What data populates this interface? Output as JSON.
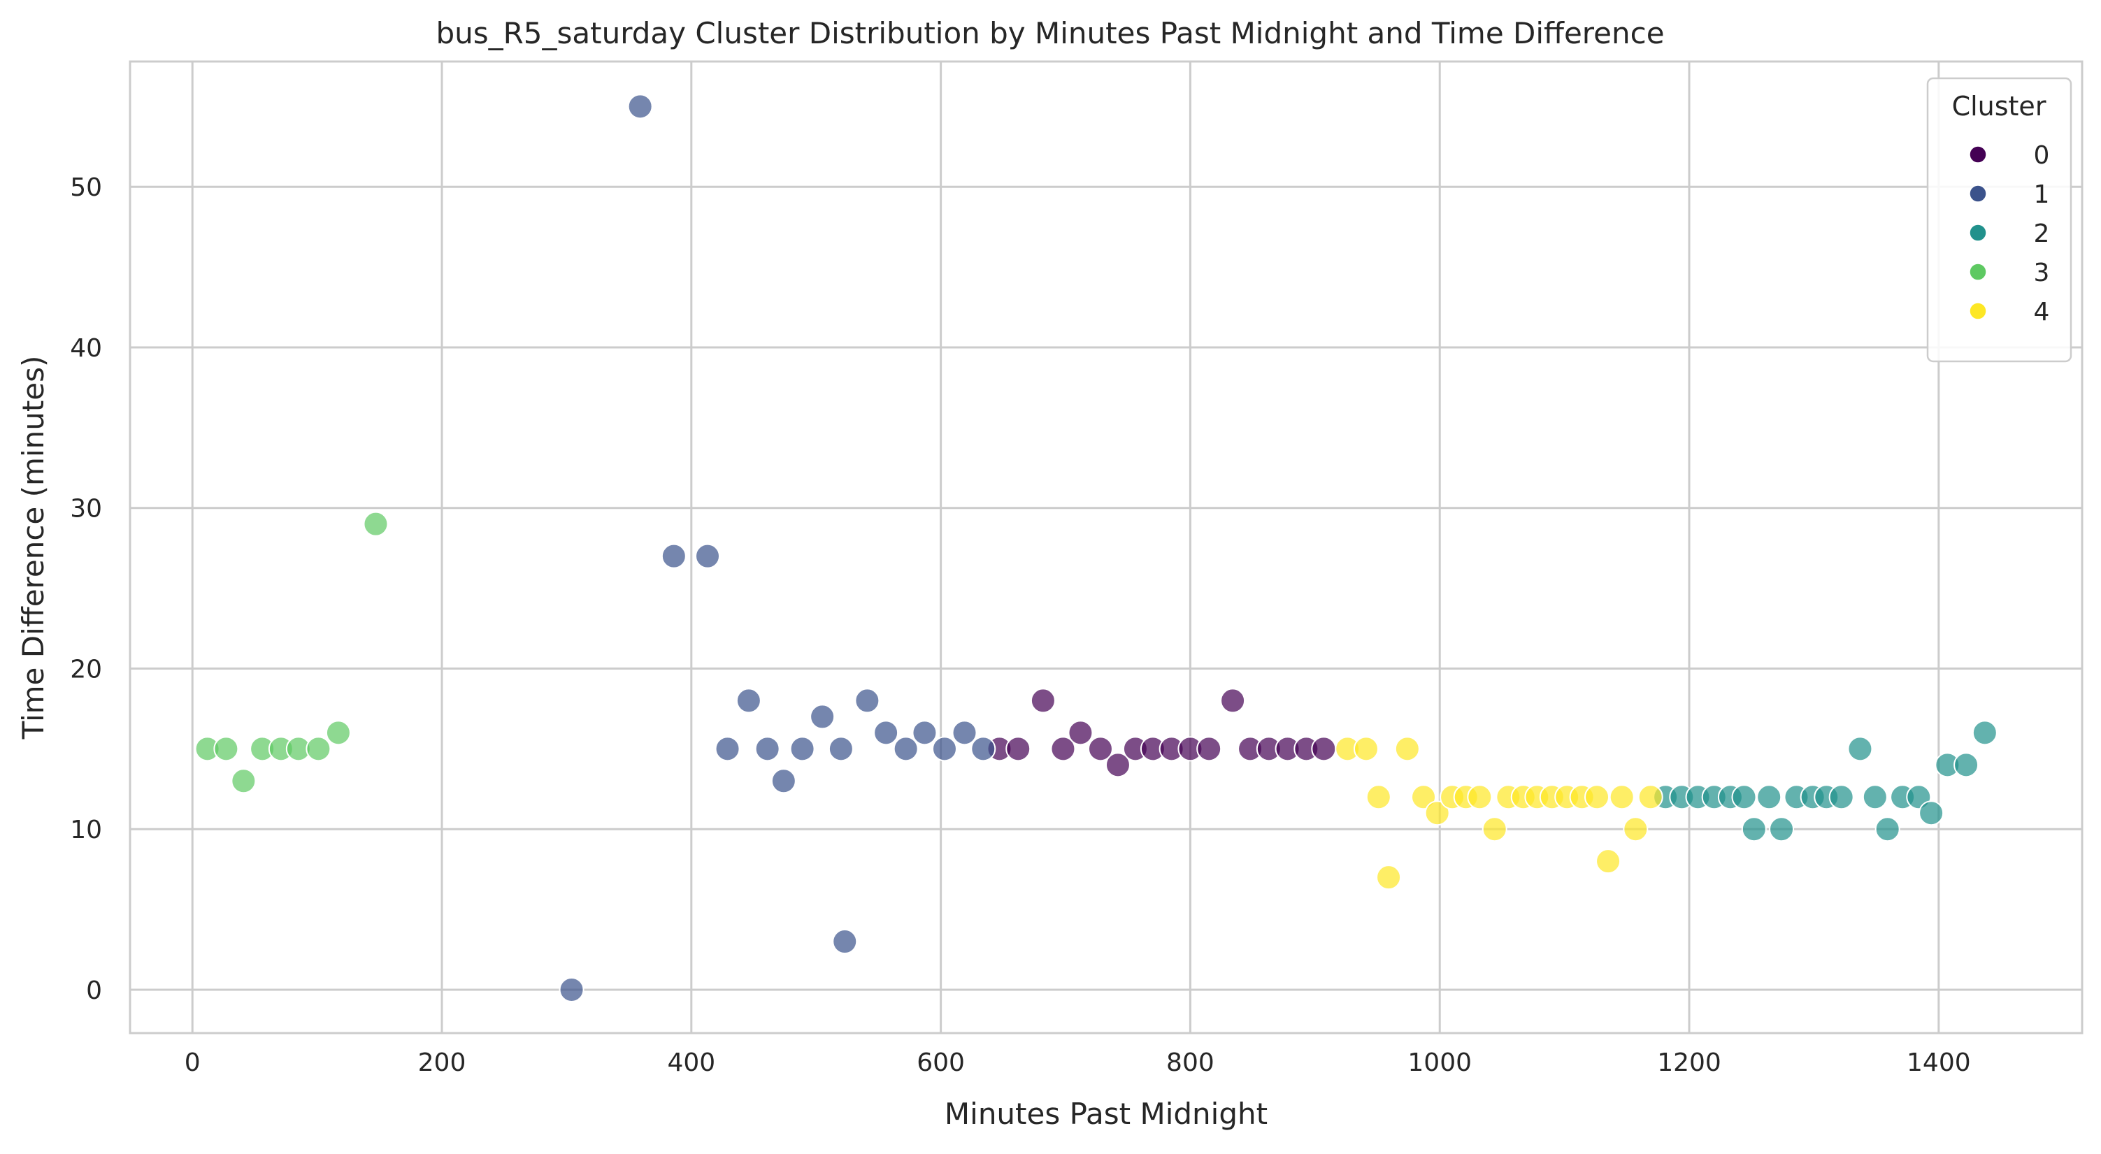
{
  "chart_data": {
    "type": "scatter",
    "title": "bus_R5_saturday Cluster Distribution by Minutes Past Midnight and Time Difference",
    "xlabel": "Minutes Past Midnight",
    "ylabel": "Time Difference (minutes)",
    "xlim": [
      -50,
      1515
    ],
    "ylim": [
      -2.7,
      57.8
    ],
    "xticks": [
      0,
      200,
      400,
      600,
      800,
      1000,
      1200,
      1400
    ],
    "yticks": [
      0,
      10,
      20,
      30,
      40,
      50
    ],
    "grid": true,
    "legend": {
      "title": "Cluster",
      "placement": "top-right"
    },
    "series": [
      {
        "name": "0",
        "color": "#440154",
        "points": [
          [
            647,
            15
          ],
          [
            662,
            15
          ],
          [
            682,
            18
          ],
          [
            698,
            15
          ],
          [
            712,
            16
          ],
          [
            728,
            15
          ],
          [
            742,
            14
          ],
          [
            756,
            15
          ],
          [
            770,
            15
          ],
          [
            785,
            15
          ],
          [
            800,
            15
          ],
          [
            815,
            15
          ],
          [
            834,
            18
          ],
          [
            848,
            15
          ],
          [
            863,
            15
          ],
          [
            878,
            15
          ],
          [
            893,
            15
          ],
          [
            907,
            15
          ]
        ]
      },
      {
        "name": "1",
        "color": "#3b528b",
        "points": [
          [
            304,
            0
          ],
          [
            359,
            55
          ],
          [
            386,
            27
          ],
          [
            413,
            27
          ],
          [
            429,
            15
          ],
          [
            446,
            18
          ],
          [
            461,
            15
          ],
          [
            474,
            13
          ],
          [
            489,
            15
          ],
          [
            505,
            17
          ],
          [
            520,
            15
          ],
          [
            523,
            3
          ],
          [
            541,
            18
          ],
          [
            556,
            16
          ],
          [
            572,
            15
          ],
          [
            587,
            16
          ],
          [
            603,
            15
          ],
          [
            619,
            16
          ],
          [
            634,
            15
          ]
        ]
      },
      {
        "name": "2",
        "color": "#21918c",
        "points": [
          [
            1181,
            12
          ],
          [
            1194,
            12
          ],
          [
            1207,
            12
          ],
          [
            1220,
            12
          ],
          [
            1233,
            12
          ],
          [
            1244,
            12
          ],
          [
            1252,
            10
          ],
          [
            1264,
            12
          ],
          [
            1274,
            10
          ],
          [
            1286,
            12
          ],
          [
            1299,
            12
          ],
          [
            1310,
            12
          ],
          [
            1322,
            12
          ],
          [
            1337,
            15
          ],
          [
            1349,
            12
          ],
          [
            1359,
            10
          ],
          [
            1371,
            12
          ],
          [
            1384,
            12
          ],
          [
            1394,
            11
          ],
          [
            1407,
            14
          ],
          [
            1422,
            14
          ],
          [
            1437,
            16
          ]
        ]
      },
      {
        "name": "3",
        "color": "#5ec962",
        "points": [
          [
            12,
            15
          ],
          [
            27,
            15
          ],
          [
            41,
            13
          ],
          [
            56,
            15
          ],
          [
            71,
            15
          ],
          [
            85,
            15
          ],
          [
            101,
            15
          ],
          [
            117,
            16
          ],
          [
            147,
            29
          ]
        ]
      },
      {
        "name": "4",
        "color": "#fde725",
        "points": [
          [
            926,
            15
          ],
          [
            941,
            15
          ],
          [
            951,
            12
          ],
          [
            959,
            7
          ],
          [
            974,
            15
          ],
          [
            987,
            12
          ],
          [
            998,
            11
          ],
          [
            1010,
            12
          ],
          [
            1021,
            12
          ],
          [
            1032,
            12
          ],
          [
            1044,
            10
          ],
          [
            1055,
            12
          ],
          [
            1067,
            12
          ],
          [
            1078,
            12
          ],
          [
            1090,
            12
          ],
          [
            1102,
            12
          ],
          [
            1114,
            12
          ],
          [
            1126,
            12
          ],
          [
            1135,
            8
          ],
          [
            1146,
            12
          ],
          [
            1157,
            10
          ],
          [
            1169,
            12
          ]
        ]
      }
    ]
  }
}
